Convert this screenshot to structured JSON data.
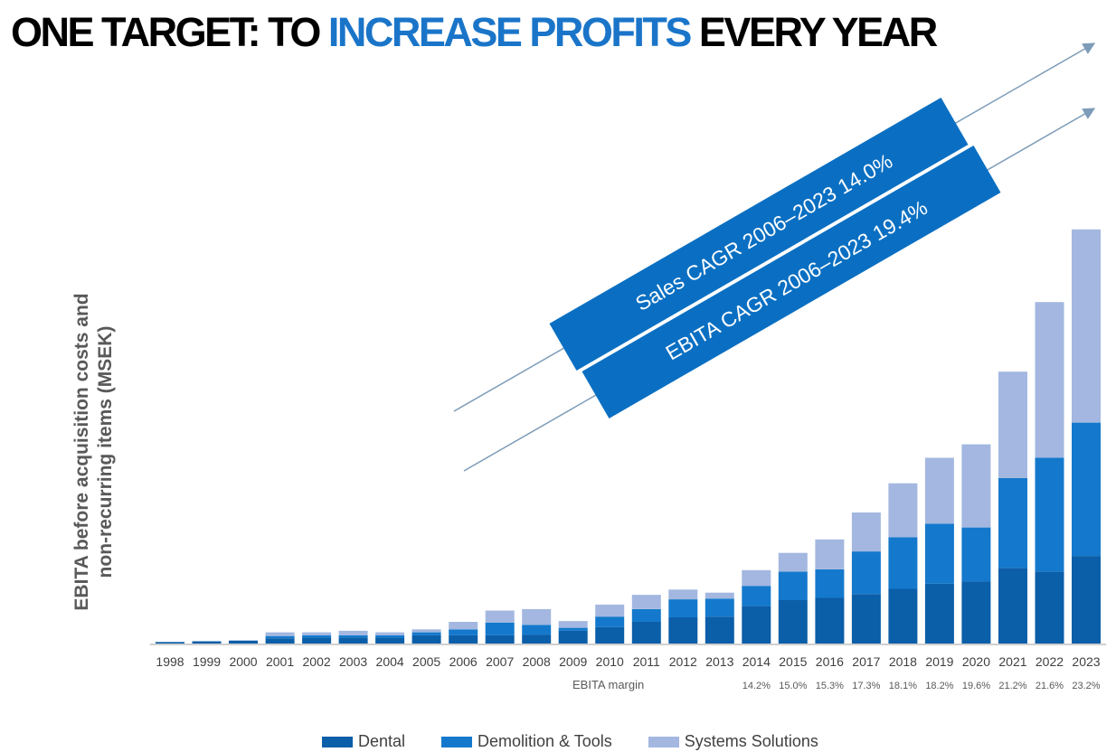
{
  "title": {
    "part1": "ONE TARGET: TO ",
    "accent": "INCREASE PROFITS",
    "part2": " EVERY YEAR"
  },
  "ylabel": {
    "line1": "EBITA before acquisition costs and",
    "line2": "non-recurring items (MSEK)"
  },
  "banners": {
    "sales": "Sales CAGR 2006–2023 14.0%",
    "ebita": "EBITA CAGR 2006–2023 19.4%"
  },
  "colors": {
    "dental": "#0b5ea8",
    "demolition": "#1479cc",
    "systems": "#a3b7e0",
    "banner": "#0a6fc2",
    "arrow": "#7d9cb8",
    "title_accent": "#1a75c9"
  },
  "legend": [
    {
      "label": "Dental",
      "color": "#0b5ea8"
    },
    {
      "label": "Demolition & Tools",
      "color": "#1479cc"
    },
    {
      "label": "Systems Solutions",
      "color": "#a3b7e0"
    }
  ],
  "margin_label": "EBITA margin",
  "chart_data": {
    "type": "bar",
    "stacked": true,
    "categories": [
      "1998",
      "1999",
      "2000",
      "2001",
      "2002",
      "2003",
      "2004",
      "2005",
      "2006",
      "2007",
      "2008",
      "2009",
      "2010",
      "2011",
      "2012",
      "2013",
      "2014",
      "2015",
      "2016",
      "2017",
      "2018",
      "2019",
      "2020",
      "2021",
      "2022",
      "2023"
    ],
    "series": [
      {
        "name": "Dental",
        "values": [
          2,
          3,
          4,
          7,
          8,
          8,
          8,
          11,
          11,
          11,
          12,
          17,
          22,
          29,
          35,
          36,
          50,
          58,
          61,
          66,
          73,
          80,
          83,
          101,
          96,
          117
        ]
      },
      {
        "name": "Demolition & Tools",
        "values": [
          0,
          0,
          0,
          3,
          3,
          3,
          3,
          4,
          8,
          17,
          13,
          4,
          14,
          17,
          24,
          24,
          27,
          38,
          38,
          57,
          69,
          80,
          72,
          120,
          152,
          178
        ]
      },
      {
        "name": "Systems Solutions",
        "values": [
          0,
          0,
          0,
          5,
          4,
          6,
          4,
          4,
          10,
          16,
          21,
          9,
          16,
          19,
          13,
          8,
          21,
          25,
          40,
          52,
          72,
          88,
          111,
          142,
          208,
          258
        ]
      }
    ],
    "ebita_margin": {
      "label": "EBITA margin",
      "categories": [
        "2014",
        "2015",
        "2016",
        "2017",
        "2018",
        "2019",
        "2020",
        "2021",
        "2022",
        "2023"
      ],
      "values": [
        "14.2%",
        "15.0%",
        "15.3%",
        "17.3%",
        "18.1%",
        "18.2%",
        "19.6%",
        "21.2%",
        "21.6%",
        "23.2%"
      ]
    },
    "ylim": [
      0,
      560
    ],
    "ylabel": "EBITA before acquisition costs and non-recurring items (MSEK)",
    "grid": false,
    "y_ticks_shown": false,
    "legend_position": "bottom"
  }
}
